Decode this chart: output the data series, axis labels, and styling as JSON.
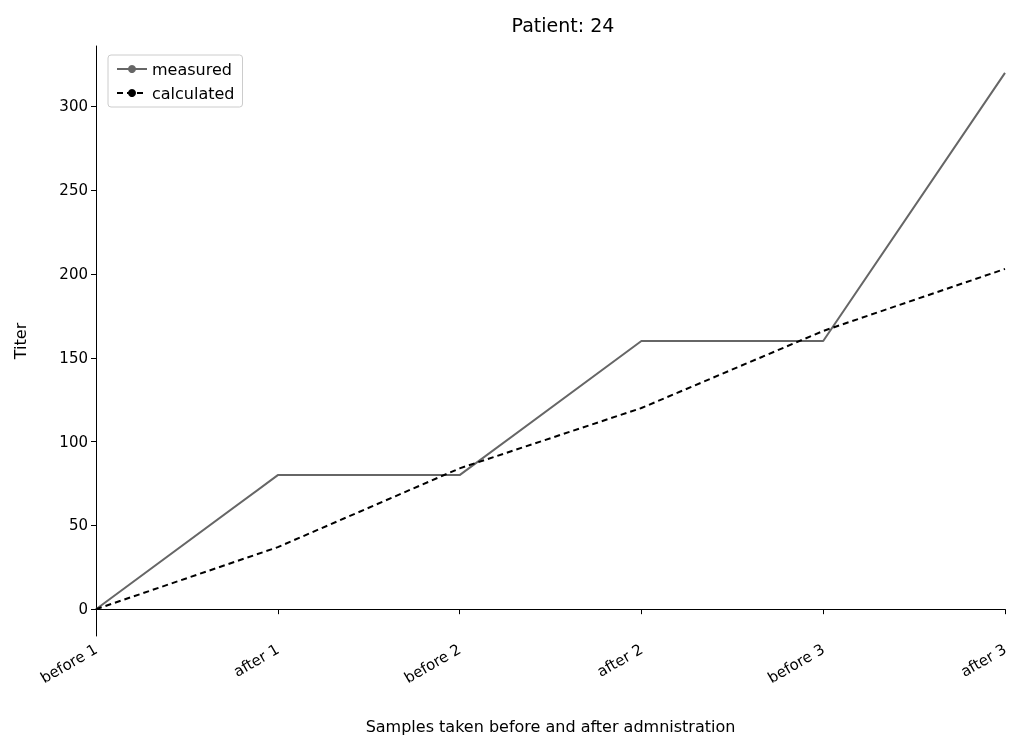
{
  "chart_data": {
    "type": "line",
    "title": "Patient: 24",
    "xlabel": "Samples taken before and after admnistration",
    "ylabel": "Titer",
    "categories": [
      "before 1",
      "after 1",
      "before 2",
      "after 2",
      "before 3",
      "after 3"
    ],
    "series": [
      {
        "name": "measured",
        "color": "#666666",
        "line_style": "solid",
        "values": [
          0,
          80,
          80,
          160,
          160,
          320
        ]
      },
      {
        "name": "calculated",
        "color": "#000000",
        "line_style": "dashed",
        "values": [
          0,
          37,
          84,
          120,
          166,
          203
        ]
      }
    ],
    "ylim": [
      -16,
      336
    ],
    "yticks": [
      0,
      50,
      100,
      150,
      200,
      250,
      300
    ],
    "grid": false,
    "legend": "top left",
    "marker": "none"
  }
}
